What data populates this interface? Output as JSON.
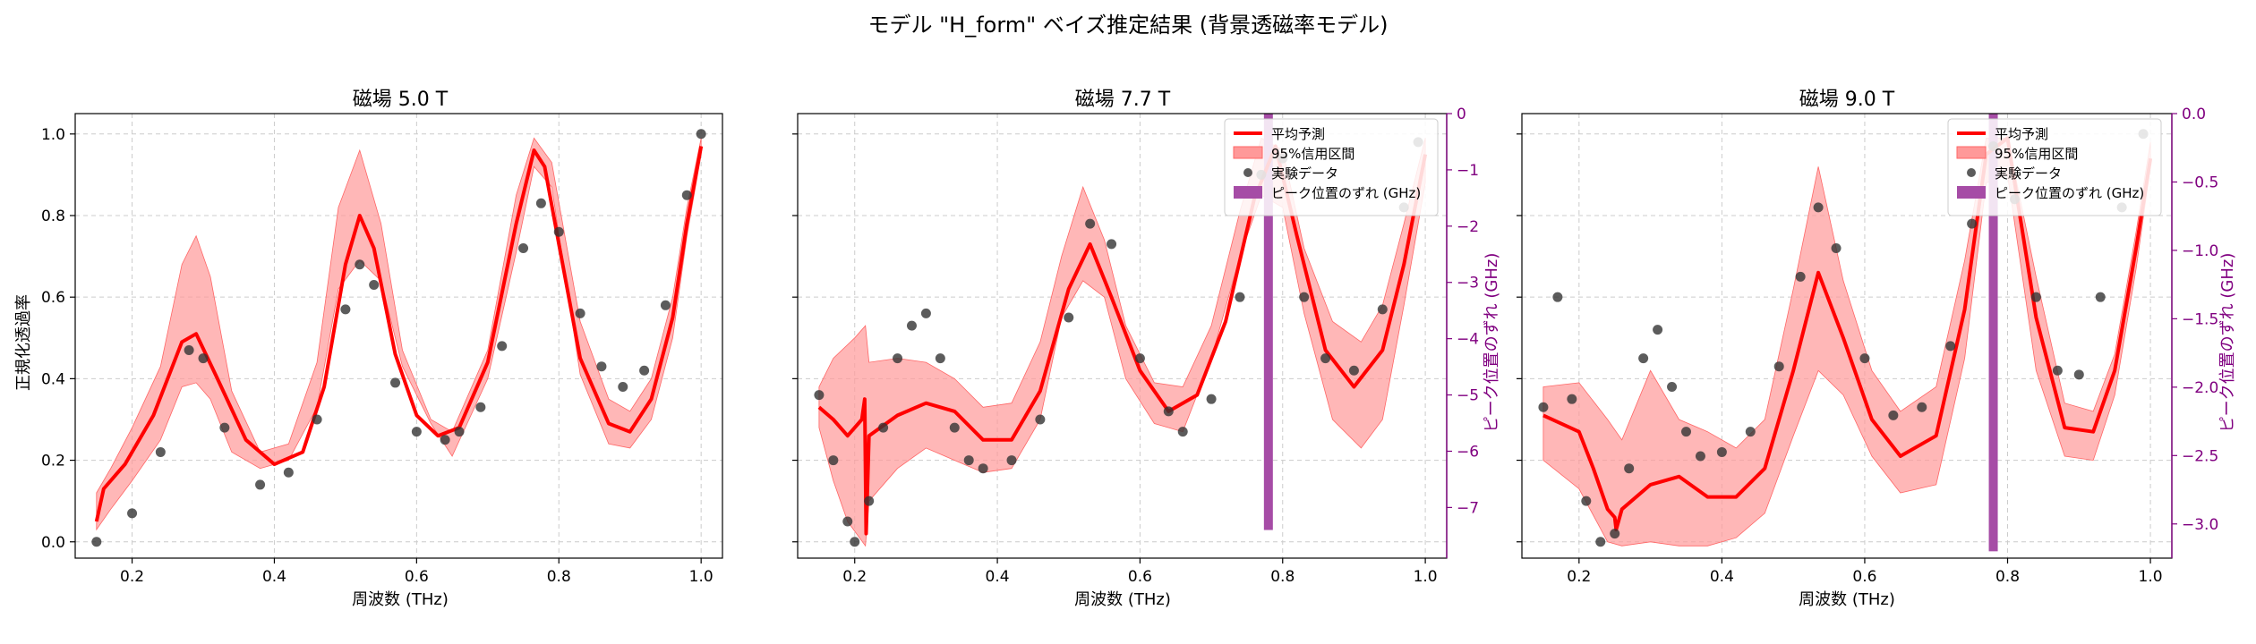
{
  "suptitle": "モデル \"H_form\" ベイズ推定結果 (背景透磁率モデル)",
  "colors": {
    "prediction": "#ff0000",
    "ci_fill": "#ff9999",
    "data_points": "#333333",
    "shift_bar": "#a64ca6",
    "grid": "#cccccc",
    "secondary_axis": "#800080"
  },
  "legend": {
    "mean": "平均予測",
    "ci": "95%信用区間",
    "data": "実験データ",
    "shift": "ピーク位置のずれ (GHz)"
  },
  "chart_data": [
    {
      "type": "line",
      "title": "磁場 5.0 T",
      "xlabel": "周波数 (THz)",
      "ylabel": "正規化透過率",
      "xlim": [
        0.12,
        1.03
      ],
      "ylim": [
        -0.04,
        1.05
      ],
      "xticks": [
        "0.2",
        "0.4",
        "0.6",
        "0.8",
        "1.0"
      ],
      "yticks": [
        "0.0",
        "0.2",
        "0.4",
        "0.6",
        "0.8",
        "1.0"
      ],
      "grid": true,
      "mean_curve": {
        "x": [
          0.15,
          0.16,
          0.19,
          0.23,
          0.27,
          0.29,
          0.32,
          0.36,
          0.4,
          0.44,
          0.47,
          0.5,
          0.52,
          0.54,
          0.57,
          0.6,
          0.63,
          0.66,
          0.7,
          0.74,
          0.765,
          0.78,
          0.8,
          0.83,
          0.87,
          0.9,
          0.93,
          0.96,
          0.98,
          1.0
        ],
        "y": [
          0.05,
          0.13,
          0.19,
          0.31,
          0.49,
          0.51,
          0.4,
          0.25,
          0.19,
          0.22,
          0.38,
          0.68,
          0.8,
          0.72,
          0.46,
          0.31,
          0.26,
          0.28,
          0.44,
          0.78,
          0.96,
          0.92,
          0.73,
          0.45,
          0.29,
          0.27,
          0.35,
          0.55,
          0.78,
          0.97
        ]
      },
      "ci_upper": {
        "x": [
          0.15,
          0.17,
          0.2,
          0.24,
          0.27,
          0.29,
          0.31,
          0.34,
          0.38,
          0.42,
          0.46,
          0.49,
          0.52,
          0.55,
          0.58,
          0.62,
          0.65,
          0.7,
          0.74,
          0.765,
          0.79,
          0.83,
          0.87,
          0.9,
          0.93,
          0.96,
          0.98,
          1.0
        ],
        "y": [
          0.12,
          0.18,
          0.28,
          0.43,
          0.68,
          0.75,
          0.65,
          0.37,
          0.22,
          0.24,
          0.44,
          0.82,
          0.96,
          0.78,
          0.47,
          0.3,
          0.27,
          0.47,
          0.85,
          0.99,
          0.93,
          0.54,
          0.35,
          0.32,
          0.4,
          0.6,
          0.82,
          0.99
        ]
      },
      "ci_lower": {
        "x": [
          0.15,
          0.17,
          0.2,
          0.24,
          0.27,
          0.29,
          0.31,
          0.34,
          0.38,
          0.42,
          0.46,
          0.49,
          0.52,
          0.55,
          0.58,
          0.62,
          0.65,
          0.7,
          0.74,
          0.765,
          0.79,
          0.83,
          0.87,
          0.9,
          0.93,
          0.96,
          0.98,
          1.0
        ],
        "y": [
          0.03,
          0.08,
          0.15,
          0.25,
          0.38,
          0.39,
          0.35,
          0.22,
          0.18,
          0.2,
          0.33,
          0.62,
          0.69,
          0.64,
          0.43,
          0.29,
          0.21,
          0.4,
          0.71,
          0.92,
          0.87,
          0.41,
          0.24,
          0.23,
          0.3,
          0.5,
          0.75,
          0.95
        ]
      },
      "data_points": {
        "x": [
          0.15,
          0.2,
          0.24,
          0.28,
          0.3,
          0.33,
          0.38,
          0.42,
          0.46,
          0.5,
          0.52,
          0.54,
          0.57,
          0.6,
          0.64,
          0.66,
          0.69,
          0.72,
          0.75,
          0.775,
          0.8,
          0.83,
          0.86,
          0.89,
          0.92,
          0.95,
          0.98,
          1.0
        ],
        "y": [
          0.0,
          0.07,
          0.22,
          0.47,
          0.45,
          0.28,
          0.14,
          0.17,
          0.3,
          0.57,
          0.68,
          0.63,
          0.39,
          0.27,
          0.25,
          0.27,
          0.33,
          0.48,
          0.72,
          0.83,
          0.76,
          0.56,
          0.43,
          0.38,
          0.42,
          0.58,
          0.85,
          1.0
        ]
      }
    },
    {
      "type": "line",
      "title": "磁場 7.7 T",
      "xlabel": "周波数 (THz)",
      "y2label": "ピーク位置のずれ (GHz)",
      "xlim": [
        0.12,
        1.03
      ],
      "ylim": [
        -0.04,
        1.05
      ],
      "y2lim": [
        -7.9,
        0.0
      ],
      "xticks": [
        "0.2",
        "0.4",
        "0.6",
        "0.8",
        "1.0"
      ],
      "y2ticks": [
        "0",
        "−1",
        "−2",
        "−3",
        "−4",
        "−5",
        "−6",
        "−7"
      ],
      "grid": true,
      "legend_position": "top-right",
      "peak_shift_bar": {
        "x": 0.78,
        "value": -7.4
      },
      "mean_curve": {
        "x": [
          0.15,
          0.17,
          0.19,
          0.21,
          0.214,
          0.216,
          0.22,
          0.26,
          0.3,
          0.34,
          0.38,
          0.42,
          0.46,
          0.5,
          0.53,
          0.56,
          0.6,
          0.64,
          0.68,
          0.72,
          0.76,
          0.79,
          0.82,
          0.86,
          0.9,
          0.94,
          0.97,
          1.0
        ],
        "y": [
          0.33,
          0.3,
          0.26,
          0.3,
          0.35,
          0.02,
          0.26,
          0.31,
          0.34,
          0.32,
          0.25,
          0.25,
          0.37,
          0.62,
          0.73,
          0.6,
          0.42,
          0.32,
          0.36,
          0.54,
          0.84,
          0.97,
          0.75,
          0.47,
          0.38,
          0.47,
          0.68,
          0.95
        ]
      },
      "ci_upper": {
        "x": [
          0.15,
          0.17,
          0.2,
          0.215,
          0.22,
          0.26,
          0.3,
          0.34,
          0.38,
          0.42,
          0.46,
          0.49,
          0.52,
          0.55,
          0.58,
          0.62,
          0.66,
          0.7,
          0.74,
          0.77,
          0.8,
          0.83,
          0.87,
          0.91,
          0.94,
          0.97,
          1.0
        ],
        "y": [
          0.38,
          0.45,
          0.5,
          0.53,
          0.44,
          0.45,
          0.44,
          0.4,
          0.33,
          0.34,
          0.49,
          0.7,
          0.87,
          0.74,
          0.53,
          0.39,
          0.38,
          0.53,
          0.81,
          0.99,
          0.96,
          0.72,
          0.54,
          0.49,
          0.58,
          0.78,
          0.99
        ]
      },
      "ci_lower": {
        "x": [
          0.15,
          0.17,
          0.19,
          0.215,
          0.22,
          0.26,
          0.3,
          0.34,
          0.38,
          0.42,
          0.46,
          0.49,
          0.52,
          0.55,
          0.58,
          0.62,
          0.66,
          0.7,
          0.74,
          0.77,
          0.8,
          0.83,
          0.87,
          0.91,
          0.94,
          0.97,
          1.0
        ],
        "y": [
          0.28,
          0.15,
          0.05,
          -0.01,
          0.1,
          0.18,
          0.23,
          0.2,
          0.17,
          0.18,
          0.3,
          0.55,
          0.64,
          0.6,
          0.4,
          0.29,
          0.27,
          0.45,
          0.7,
          0.85,
          0.82,
          0.56,
          0.3,
          0.23,
          0.3,
          0.58,
          0.88
        ]
      },
      "data_points": {
        "x": [
          0.15,
          0.17,
          0.19,
          0.2,
          0.22,
          0.24,
          0.26,
          0.28,
          0.3,
          0.32,
          0.34,
          0.36,
          0.38,
          0.42,
          0.46,
          0.5,
          0.53,
          0.56,
          0.6,
          0.64,
          0.66,
          0.7,
          0.74,
          0.77,
          0.8,
          0.83,
          0.86,
          0.9,
          0.94,
          0.97,
          0.99
        ],
        "y": [
          0.36,
          0.2,
          0.05,
          0.0,
          0.1,
          0.28,
          0.45,
          0.53,
          0.56,
          0.45,
          0.28,
          0.2,
          0.18,
          0.2,
          0.3,
          0.55,
          0.78,
          0.73,
          0.45,
          0.32,
          0.27,
          0.35,
          0.6,
          0.9,
          0.94,
          0.6,
          0.45,
          0.42,
          0.57,
          0.82,
          0.98
        ]
      }
    },
    {
      "type": "line",
      "title": "磁場 9.0 T",
      "xlabel": "周波数 (THz)",
      "y2label": "ピーク位置のずれ (GHz)",
      "xlim": [
        0.12,
        1.03
      ],
      "ylim": [
        -0.04,
        1.05
      ],
      "y2lim": [
        -3.25,
        0.0
      ],
      "xticks": [
        "0.2",
        "0.4",
        "0.6",
        "0.8",
        "1.0"
      ],
      "y2ticks": [
        "0.0",
        "−0.5",
        "−1.0",
        "−1.5",
        "−2.0",
        "−2.5",
        "−3.0"
      ],
      "grid": true,
      "legend_position": "top-right",
      "peak_shift_bar": {
        "x": 0.78,
        "value": -3.2
      },
      "mean_curve": {
        "x": [
          0.15,
          0.2,
          0.22,
          0.24,
          0.25,
          0.252,
          0.26,
          0.3,
          0.34,
          0.38,
          0.42,
          0.46,
          0.5,
          0.535,
          0.57,
          0.61,
          0.65,
          0.7,
          0.74,
          0.77,
          0.8,
          0.84,
          0.88,
          0.92,
          0.95,
          0.98,
          1.0
        ],
        "y": [
          0.31,
          0.27,
          0.18,
          0.08,
          0.06,
          0.03,
          0.08,
          0.14,
          0.16,
          0.11,
          0.11,
          0.18,
          0.42,
          0.66,
          0.5,
          0.3,
          0.21,
          0.26,
          0.57,
          0.95,
          0.99,
          0.55,
          0.28,
          0.27,
          0.42,
          0.72,
          0.94
        ]
      },
      "ci_upper": {
        "x": [
          0.15,
          0.2,
          0.24,
          0.26,
          0.3,
          0.34,
          0.38,
          0.42,
          0.46,
          0.5,
          0.535,
          0.57,
          0.61,
          0.65,
          0.7,
          0.74,
          0.77,
          0.8,
          0.84,
          0.88,
          0.92,
          0.95,
          0.98,
          1.0
        ],
        "y": [
          0.38,
          0.39,
          0.3,
          0.25,
          0.42,
          0.3,
          0.27,
          0.23,
          0.3,
          0.62,
          0.92,
          0.64,
          0.42,
          0.32,
          0.38,
          0.69,
          0.99,
          0.99,
          0.65,
          0.34,
          0.32,
          0.46,
          0.76,
          0.98
        ]
      },
      "ci_lower": {
        "x": [
          0.15,
          0.2,
          0.24,
          0.26,
          0.3,
          0.34,
          0.38,
          0.42,
          0.46,
          0.5,
          0.535,
          0.57,
          0.61,
          0.65,
          0.7,
          0.74,
          0.77,
          0.8,
          0.84,
          0.88,
          0.92,
          0.95,
          0.98,
          1.0
        ],
        "y": [
          0.2,
          0.13,
          0.0,
          -0.01,
          0.0,
          -0.01,
          -0.01,
          0.01,
          0.07,
          0.26,
          0.42,
          0.36,
          0.21,
          0.12,
          0.14,
          0.45,
          0.88,
          0.9,
          0.42,
          0.21,
          0.2,
          0.36,
          0.67,
          0.92
        ]
      },
      "data_points": {
        "x": [
          0.15,
          0.17,
          0.19,
          0.21,
          0.23,
          0.25,
          0.27,
          0.29,
          0.31,
          0.33,
          0.35,
          0.37,
          0.4,
          0.44,
          0.48,
          0.51,
          0.535,
          0.56,
          0.6,
          0.64,
          0.68,
          0.72,
          0.75,
          0.78,
          0.81,
          0.84,
          0.87,
          0.9,
          0.93,
          0.96,
          0.99
        ],
        "y": [
          0.33,
          0.6,
          0.35,
          0.1,
          0.0,
          0.02,
          0.18,
          0.45,
          0.52,
          0.38,
          0.27,
          0.21,
          0.22,
          0.27,
          0.43,
          0.65,
          0.82,
          0.72,
          0.45,
          0.31,
          0.33,
          0.48,
          0.78,
          0.97,
          0.84,
          0.6,
          0.42,
          0.41,
          0.6,
          0.82,
          1.0
        ]
      }
    }
  ]
}
